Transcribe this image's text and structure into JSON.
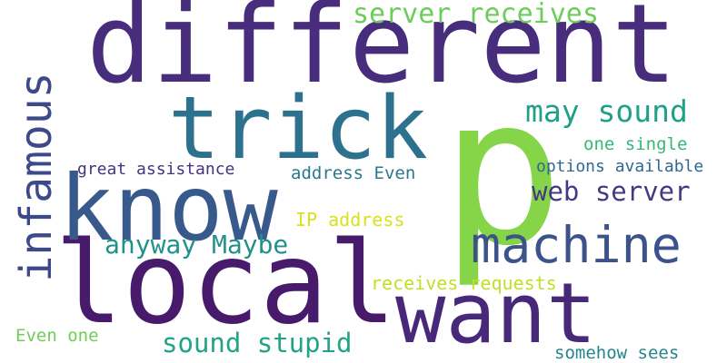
{
  "words": [
    {
      "text": "different",
      "color": "#472d7b"
    },
    {
      "text": "local",
      "color": "#481a6c"
    },
    {
      "text": "p",
      "color": "#86d549"
    },
    {
      "text": "know",
      "color": "#38598c"
    },
    {
      "text": "trick",
      "color": "#2c728e"
    },
    {
      "text": "machine",
      "color": "#3b528b"
    },
    {
      "text": "want",
      "color": "#482878"
    },
    {
      "text": "infamous",
      "color": "#3e4989"
    },
    {
      "text": "server receives",
      "color": "#6ccd5a"
    },
    {
      "text": "may sound",
      "color": "#1fa088"
    },
    {
      "text": "one single",
      "color": "#35b779"
    },
    {
      "text": "options available",
      "color": "#31688e"
    },
    {
      "text": "web server",
      "color": "#443983"
    },
    {
      "text": "great assistance",
      "color": "#46337e"
    },
    {
      "text": "address Even",
      "color": "#2a788e"
    },
    {
      "text": "IP address",
      "color": "#d8e219"
    },
    {
      "text": "anyway Maybe",
      "color": "#21918c"
    },
    {
      "text": "receives requests",
      "color": "#c2df23"
    },
    {
      "text": "Even one",
      "color": "#6ece58"
    },
    {
      "text": "sound stupid",
      "color": "#20a386"
    },
    {
      "text": "somehow sees",
      "color": "#25848e"
    }
  ]
}
